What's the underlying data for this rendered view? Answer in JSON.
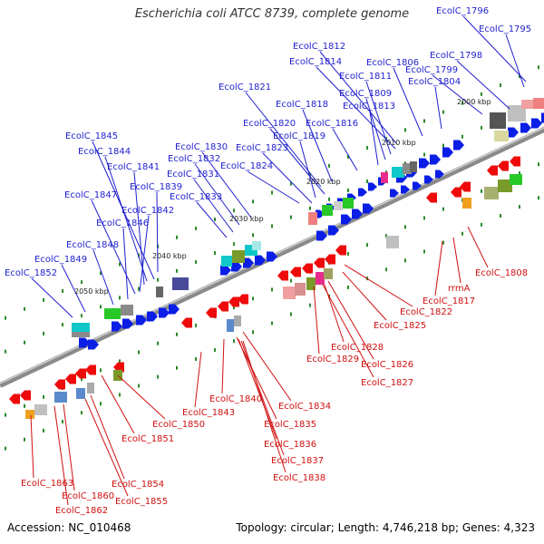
{
  "title": "Escherichia coli ATCC 8739, complete genome",
  "footer": {
    "accession": "Accession: NC_010468",
    "topology": "Topology: circular; Length: 4,746,218 bp; Genes: 4,323"
  },
  "colors": {
    "forward_label": "#1f1fcf",
    "reverse_label": "#d01010",
    "forward_gene": "#0a1ee6",
    "reverse_gene": "#ee0a0a",
    "backbone": "#8a8a8a",
    "tick": "#2b8a2b"
  },
  "scale": [
    {
      "label": "2000 kbp"
    },
    {
      "label": "2010 kbp"
    },
    {
      "label": "2020 kbp"
    },
    {
      "label": "2030 kbp"
    },
    {
      "label": "2040 kbp"
    },
    {
      "label": "2050 kbp"
    }
  ],
  "forward_labels": [
    "EcolC_1796",
    "EcolC_1795",
    "EcolC_1798",
    "EcolC_1799",
    "EcolC_1804",
    "EcolC_1806",
    "EcolC_1812",
    "EcolC_1814",
    "EcolC_1811",
    "EcolC_1809",
    "EcolC_1813",
    "EcolC_1816",
    "EcolC_1821",
    "EcolC_1818",
    "EcolC_1820",
    "EcolC_1819",
    "EcolC_1823",
    "EcolC_1824",
    "EcolC_1830",
    "EcolC_1832",
    "EcolC_1831",
    "EcolC_1833",
    "EcolC_1845",
    "EcolC_1844",
    "EcolC_1841",
    "EcolC_1839",
    "EcolC_1847",
    "EcolC_1842",
    "EcolC_1846",
    "EcolC_1848",
    "EcolC_1849",
    "EcolC_1852"
  ],
  "reverse_labels": [
    "EcolC_1808",
    "rrmA",
    "EcolC_1817",
    "EcolC_1822",
    "EcolC_1825",
    "EcolC_1828",
    "EcolC_1829",
    "EcolC_1826",
    "EcolC_1827",
    "EcolC_1834",
    "EcolC_1840",
    "EcolC_1843",
    "EcolC_1835",
    "EcolC_1836",
    "EcolC_1837",
    "EcolC_1838",
    "EcolC_1850",
    "EcolC_1851",
    "EcolC_1854",
    "EcolC_1855",
    "EcolC_1860",
    "EcolC_1862",
    "EcolC_1863"
  ]
}
